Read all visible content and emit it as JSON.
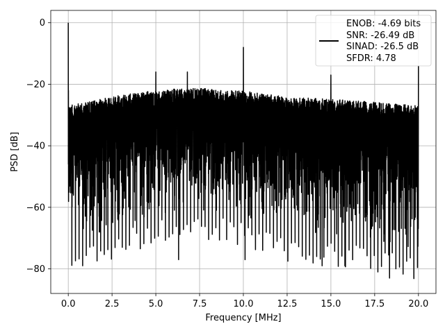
{
  "chart_data": {
    "type": "line",
    "title": "",
    "xlabel": "Frequency [MHz]",
    "ylabel": "PSD [dB]",
    "xlim": [
      -1.0,
      21.0
    ],
    "ylim": [
      -88,
      4
    ],
    "x_ticks": [
      0,
      2.5,
      5,
      7.5,
      10,
      12.5,
      15,
      17.5,
      20
    ],
    "x_tick_labels": [
      "0.0",
      "2.5",
      "5.0",
      "7.5",
      "10.0",
      "12.5",
      "15.0",
      "17.5",
      "20.0"
    ],
    "y_ticks": [
      0,
      -20,
      -40,
      -60,
      -80
    ],
    "y_tick_labels": [
      "0",
      "−20",
      "−40",
      "−60",
      "−80"
    ],
    "grid": true,
    "legend_position": "top-right",
    "series": [
      {
        "name": "",
        "color": "#000000",
        "description_points": {
          "x_range": [
            0,
            20
          ],
          "noise_floor_upper_dB": [
            -27,
            -21
          ],
          "noise_floor_lower_dB": [
            -76,
            -62
          ],
          "dc_peak": {
            "x": 0.0,
            "y": 0
          },
          "spurs": [
            {
              "x": 10.0,
              "y": -8
            },
            {
              "x": 20.0,
              "y": -14
            },
            {
              "x": 5.0,
              "y": -16
            },
            {
              "x": 6.8,
              "y": -16
            },
            {
              "x": 15.0,
              "y": -17
            }
          ],
          "deep_dips": [
            {
              "x": 18.35,
              "y": -83
            },
            {
              "x": 14.5,
              "y": -79
            },
            {
              "x": 10.1,
              "y": -77
            },
            {
              "x": 6.3,
              "y": -77
            },
            {
              "x": 15.8,
              "y": -79
            }
          ]
        }
      }
    ],
    "legend": {
      "lines": [
        "ENOB: -4.69 bits",
        "SNR: -26.49 dB",
        "SINAD: -26.5 dB",
        "SFDR: 4.78"
      ]
    }
  }
}
